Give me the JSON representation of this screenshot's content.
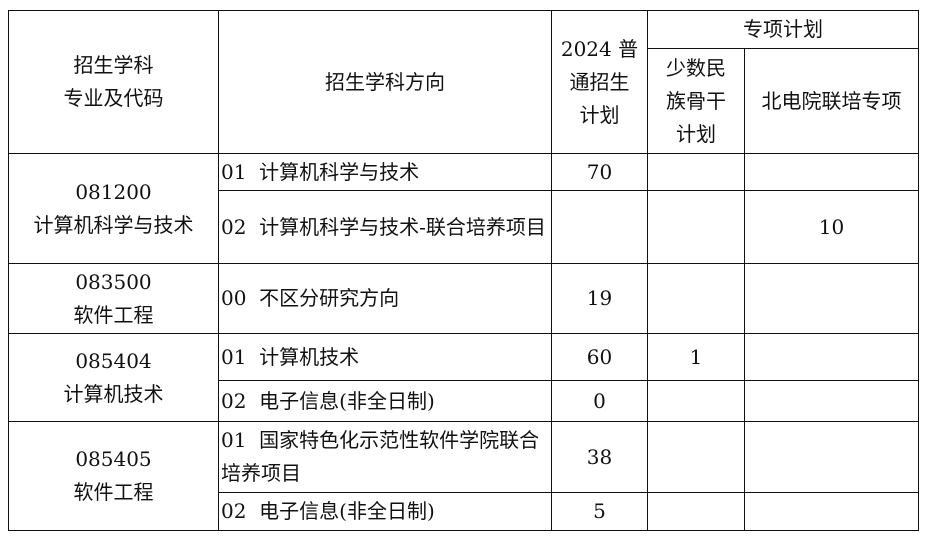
{
  "header": {
    "subject": [
      "招生学科",
      "专业及代码"
    ],
    "direction": "招生学科方向",
    "general_plan": [
      "2024 普",
      "通招生",
      "计划"
    ],
    "special_plan": "专项计划",
    "minority": [
      "少数民",
      "族骨干",
      "计划"
    ],
    "joint": "北电院联培专项"
  },
  "groups": [
    {
      "code": "081200",
      "name": "计算机科学与技术",
      "rows": [
        {
          "direction": "01  计算机科学与技术",
          "general": "70",
          "minority": "",
          "joint": ""
        },
        {
          "direction": "02  计算机科学与技术-联合培养项目",
          "general": "",
          "minority": "",
          "joint": "10"
        }
      ]
    },
    {
      "code": "083500",
      "name": "软件工程",
      "rows": [
        {
          "direction": "00  不区分研究方向",
          "general": "19",
          "minority": "",
          "joint": ""
        }
      ]
    },
    {
      "code": "085404",
      "name": "计算机技术",
      "rows": [
        {
          "direction": "01  计算机技术",
          "general": "60",
          "minority": "1",
          "joint": ""
        },
        {
          "direction": "02  电子信息(非全日制)",
          "general": "0",
          "minority": "",
          "joint": ""
        }
      ]
    },
    {
      "code": "085405",
      "name": "软件工程",
      "rows": [
        {
          "direction": "01  国家特色化示范性软件学院联合培养项目",
          "general": "38",
          "minority": "",
          "joint": ""
        },
        {
          "direction": "02  电子信息(非全日制)",
          "general": "5",
          "minority": "",
          "joint": ""
        }
      ]
    }
  ]
}
